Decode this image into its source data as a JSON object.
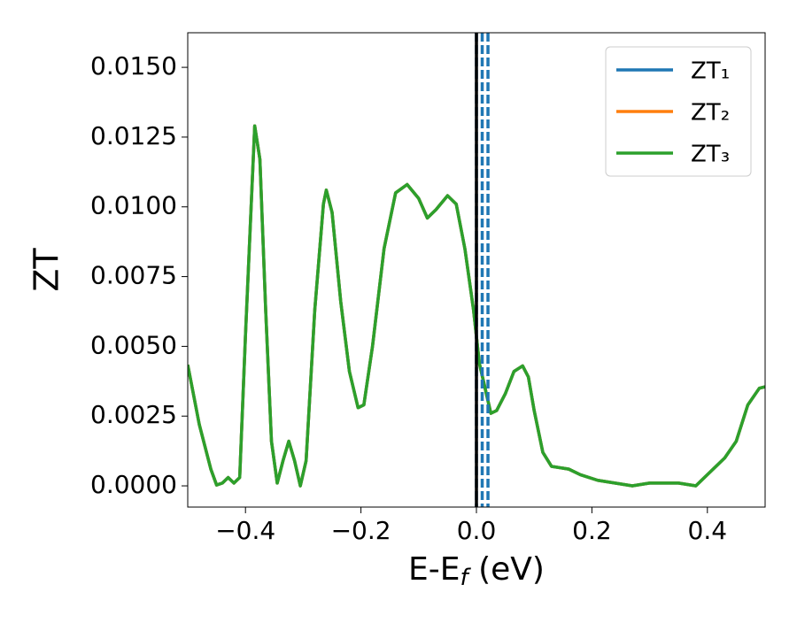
{
  "chart_data": {
    "type": "line",
    "ylabel": "ZT",
    "xlabel": [
      "E-E",
      "f",
      " (eV)"
    ],
    "x": [
      -0.5,
      -0.48,
      -0.46,
      -0.45,
      -0.44,
      -0.43,
      -0.42,
      -0.41,
      -0.4,
      -0.39,
      -0.384,
      -0.375,
      -0.365,
      -0.355,
      -0.345,
      -0.335,
      -0.325,
      -0.315,
      -0.305,
      -0.295,
      -0.28,
      -0.265,
      -0.26,
      -0.25,
      -0.235,
      -0.22,
      -0.205,
      -0.195,
      -0.18,
      -0.16,
      -0.14,
      -0.12,
      -0.1,
      -0.085,
      -0.07,
      -0.05,
      -0.035,
      -0.02,
      -0.005,
      0.005,
      0.015,
      0.025,
      0.035,
      0.05,
      0.065,
      0.08,
      0.09,
      0.1,
      0.115,
      0.13,
      0.16,
      0.18,
      0.21,
      0.24,
      0.27,
      0.3,
      0.35,
      0.38,
      0.4,
      0.43,
      0.45,
      0.47,
      0.49,
      0.5
    ],
    "series": [
      {
        "name": "ZT₁",
        "color": "#1f77b4",
        "values": [
          0.00434,
          0.0022,
          0.0006,
          3e-05,
          0.0001,
          0.0003,
          0.0001,
          0.0003,
          0.0054,
          0.0101,
          0.0129,
          0.0117,
          0.0063,
          0.0016,
          0.0001,
          0.0009,
          0.0016,
          0.0009,
          0,
          0.0009,
          0.0063,
          0.0101,
          0.0106,
          0.0098,
          0.0066,
          0.0041,
          0.0028,
          0.0029,
          0.005,
          0.0085,
          0.0105,
          0.0108,
          0.0103,
          0.0096,
          0.0099,
          0.0104,
          0.0101,
          0.0085,
          0.0063,
          0.0044,
          0.0035,
          0.0026,
          0.0027,
          0.0033,
          0.0041,
          0.0043,
          0.0039,
          0.0027,
          0.0012,
          0.0007,
          0.0006,
          0.0004,
          0.0002,
          0.0001,
          0,
          0.0001,
          0.0001,
          0,
          0.0004,
          0.001,
          0.0016,
          0.0029,
          0.0035,
          0.00355
        ]
      },
      {
        "name": "ZT₂",
        "color": "#ff7f0e",
        "values": [
          0.00434,
          0.0022,
          0.0006,
          3e-05,
          0.0001,
          0.0003,
          0.0001,
          0.0003,
          0.0054,
          0.0101,
          0.0129,
          0.0117,
          0.0063,
          0.0016,
          0.0001,
          0.0009,
          0.0016,
          0.0009,
          0,
          0.0009,
          0.0063,
          0.0101,
          0.0106,
          0.0098,
          0.0066,
          0.0041,
          0.0028,
          0.0029,
          0.005,
          0.0085,
          0.0105,
          0.0108,
          0.0103,
          0.0096,
          0.0099,
          0.0104,
          0.0101,
          0.0085,
          0.0063,
          0.0044,
          0.0035,
          0.0026,
          0.0027,
          0.0033,
          0.0041,
          0.0043,
          0.0039,
          0.0027,
          0.0012,
          0.0007,
          0.0006,
          0.0004,
          0.0002,
          0.0001,
          0,
          0.0001,
          0.0001,
          0,
          0.0004,
          0.001,
          0.0016,
          0.0029,
          0.0035,
          0.00355
        ]
      },
      {
        "name": "ZT₃",
        "color": "#2ca02c",
        "values": [
          0.00434,
          0.0022,
          0.0006,
          3e-05,
          0.0001,
          0.0003,
          0.0001,
          0.0003,
          0.0054,
          0.0101,
          0.0129,
          0.0117,
          0.0063,
          0.0016,
          0.0001,
          0.0009,
          0.0016,
          0.0009,
          0,
          0.0009,
          0.0063,
          0.0101,
          0.0106,
          0.0098,
          0.0066,
          0.0041,
          0.0028,
          0.0029,
          0.005,
          0.0085,
          0.0105,
          0.0108,
          0.0103,
          0.0096,
          0.0099,
          0.0104,
          0.0101,
          0.0085,
          0.0063,
          0.0044,
          0.0035,
          0.0026,
          0.0027,
          0.0033,
          0.0041,
          0.0043,
          0.0039,
          0.0027,
          0.0012,
          0.0007,
          0.0006,
          0.0004,
          0.0002,
          0.0001,
          0,
          0.0001,
          0.0001,
          0,
          0.0004,
          0.001,
          0.0016,
          0.0029,
          0.0035,
          0.00355
        ]
      }
    ],
    "vlines": [
      {
        "x": 0.01,
        "color": "#1f77b4",
        "style": "dashed"
      },
      {
        "x": 0.02,
        "color": "#1f77b4",
        "style": "dashed"
      },
      {
        "x": 0,
        "color": "#1f77b4",
        "style": "dashed"
      },
      {
        "x": 0,
        "color": "#000000",
        "style": "solid"
      }
    ],
    "xlim": [
      -0.5,
      0.5
    ],
    "ylim": [
      -0.00076,
      0.01624
    ],
    "xticks": [
      {
        "value": -0.4,
        "label": "−0.4"
      },
      {
        "value": -0.2,
        "label": "−0.2"
      },
      {
        "value": 0,
        "label": "0.0"
      },
      {
        "value": 0.2,
        "label": "0.2"
      },
      {
        "value": 0.4,
        "label": "0.4"
      }
    ],
    "yticks": [
      {
        "value": 0,
        "label": "0.0000"
      },
      {
        "value": 0.0025,
        "label": "0.0025"
      },
      {
        "value": 0.005,
        "label": "0.0050"
      },
      {
        "value": 0.0075,
        "label": "0.0075"
      },
      {
        "value": 0.01,
        "label": "0.0100"
      },
      {
        "value": 0.0125,
        "label": "0.0125"
      },
      {
        "value": 0.015,
        "label": "0.0150"
      }
    ],
    "legend": "upper right",
    "grid": false
  }
}
